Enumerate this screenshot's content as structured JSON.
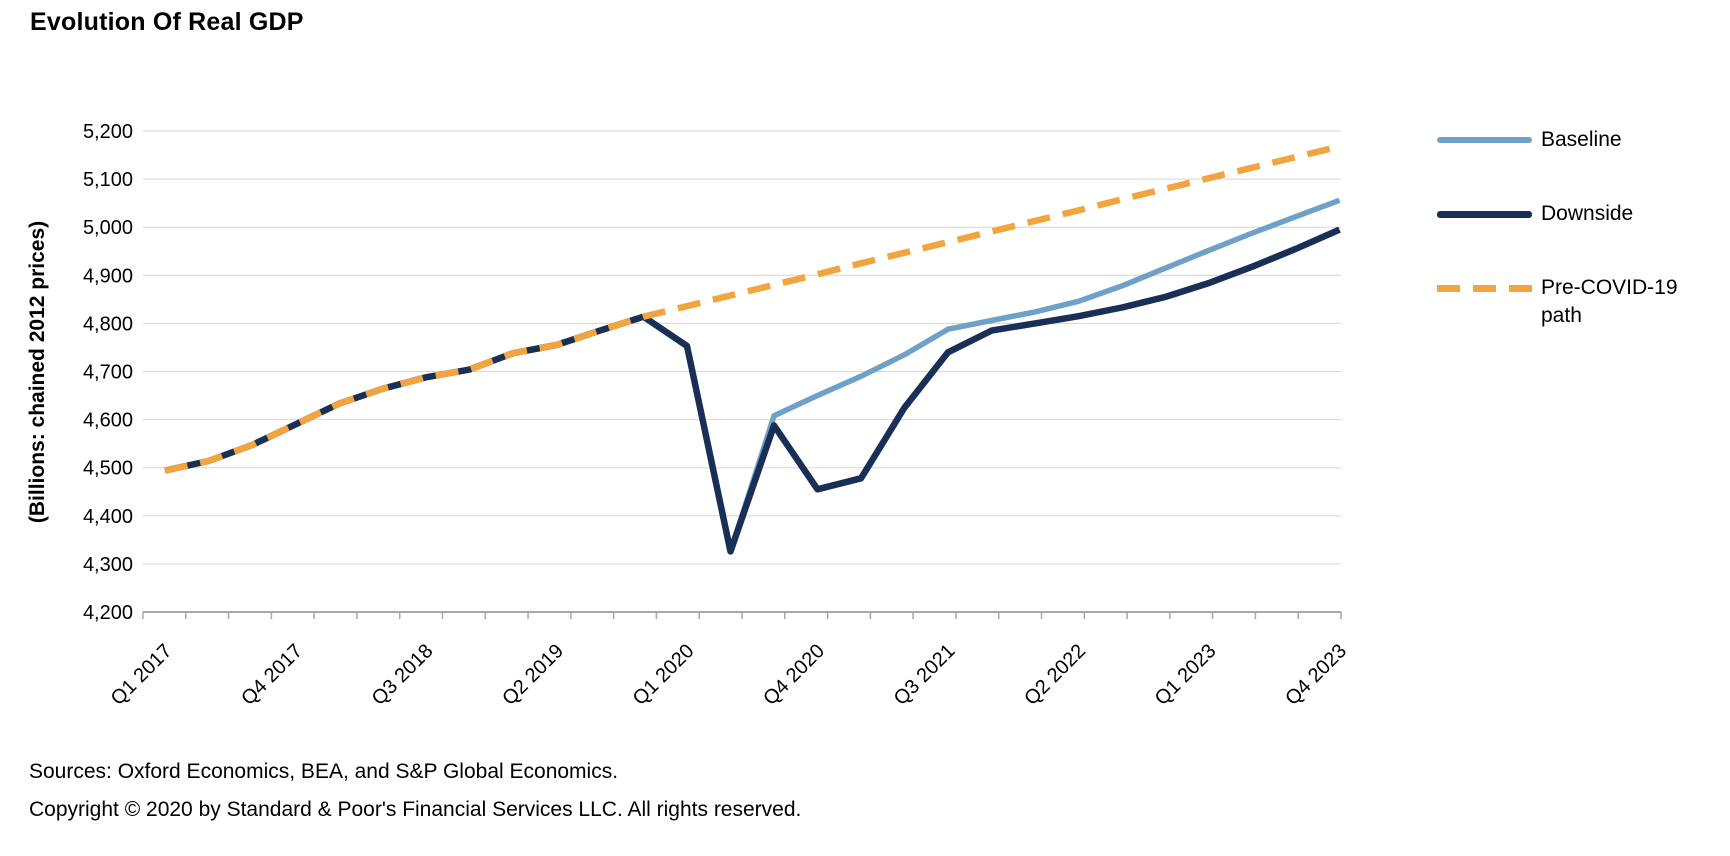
{
  "chart_data": {
    "type": "line",
    "title": "Evolution Of Real GDP",
    "y_axis_title": "(Billions: chained 2012 prices)",
    "ylim": [
      4200,
      5200
    ],
    "y_tick_step": 100,
    "y_ticks": [
      "4,200",
      "4,300",
      "4,400",
      "4,500",
      "4,600",
      "4,700",
      "4,800",
      "4,900",
      "5,000",
      "5,100",
      "5,200"
    ],
    "categories": [
      "Q1 2017",
      "Q2 2017",
      "Q3 2017",
      "Q4 2017",
      "Q1 2018",
      "Q2 2018",
      "Q3 2018",
      "Q4 2018",
      "Q1 2019",
      "Q2 2019",
      "Q3 2019",
      "Q4 2019",
      "Q1 2020",
      "Q2 2020",
      "Q3 2020",
      "Q4 2020",
      "Q1 2021",
      "Q2 2021",
      "Q3 2021",
      "Q4 2021",
      "Q1 2022",
      "Q2 2022",
      "Q3 2022",
      "Q4 2022",
      "Q1 2023",
      "Q2 2023",
      "Q3 2023",
      "Q4 2023"
    ],
    "x_tick_label_every": 3,
    "grid": true,
    "grid_color": "#D6D6D6",
    "axis_color": "#A8A8A8",
    "legend_position": "right",
    "series": [
      {
        "name": "Baseline",
        "style": "solid",
        "color": "#6FA1C8",
        "width": 5.5,
        "values": [
          4494,
          4514,
          4547,
          4590,
          4633,
          4664,
          4688,
          4704,
          4738,
          4755,
          4785,
          4814,
          4753,
          4326,
          4608,
          4650,
          4690,
          4735,
          4788,
          4806,
          4824,
          4846,
          4878,
          4915,
          4952,
          4988,
          5022,
          5056
        ]
      },
      {
        "name": "Downside",
        "style": "solid",
        "color": "#1A2F55",
        "width": 6.5,
        "values": [
          4494,
          4514,
          4547,
          4590,
          4633,
          4664,
          4688,
          4704,
          4738,
          4755,
          4785,
          4814,
          4753,
          4326,
          4588,
          4455,
          4478,
          4625,
          4740,
          4785,
          4800,
          4815,
          4833,
          4855,
          4884,
          4918,
          4955,
          4995
        ]
      },
      {
        "name": "Pre-COVID-19 path",
        "style": "dashed",
        "color": "#F2A43E",
        "width": 6.5,
        "dash": [
          23,
          13
        ],
        "values": [
          4494,
          4514,
          4547,
          4590,
          4633,
          4664,
          4688,
          4704,
          4738,
          4755,
          4785,
          4814,
          4836,
          4858,
          4880,
          4902,
          4925,
          4947,
          4969,
          4991,
          5013,
          5035,
          5058,
          5080,
          5102,
          5124,
          5146,
          5168
        ]
      }
    ]
  },
  "footer": {
    "sources": "Sources: Oxford Economics, BEA, and S&P Global Economics.",
    "copyright": "Copyright © 2020 by Standard & Poor's Financial Services LLC. All rights reserved."
  }
}
